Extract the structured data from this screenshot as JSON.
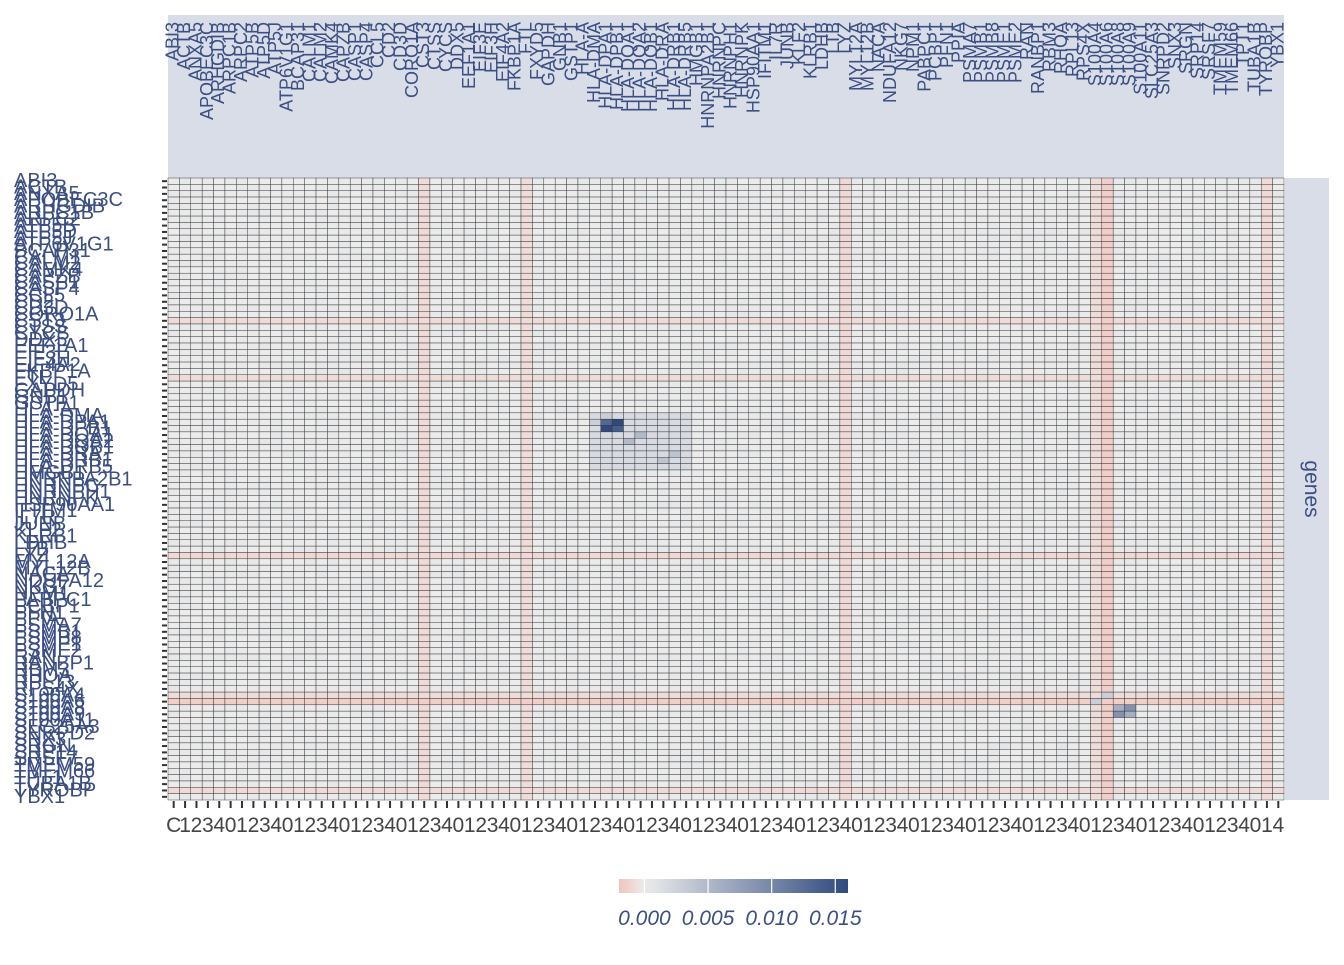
{
  "chart_data": {
    "type": "heatmap",
    "title": "",
    "facet_label": "genes",
    "genes": [
      "ABI3",
      "ACTB",
      "ANXA5",
      "APOBEC3C",
      "ARHGDIB",
      "ARPC1B",
      "ARPC2",
      "ATP5B",
      "ATP5D",
      "ATP5J",
      "ATP6V1G1",
      "BCAP31",
      "CALM1",
      "CALM2",
      "CAMK4",
      "CAPZB",
      "CASP1",
      "CASP4",
      "CCL5",
      "CD2",
      "CD3D",
      "CORO1A",
      "CST3",
      "CTSS",
      "CYCS",
      "DDX5",
      "EEF1A1",
      "EIF3E",
      "EIF3H",
      "EIF4A2",
      "FKBP1A",
      "FTL",
      "FXYD5",
      "GAPDH",
      "GNB1",
      "GSTP1",
      "HLA-A",
      "HLA-DMA",
      "HLA-DPA1",
      "HLA-DPB1",
      "HLA-DQA1",
      "HLA-DQA2",
      "HLA-DQB1",
      "HLA-DRA",
      "HLA-DRB1",
      "HLA-DRB5",
      "HMGB1",
      "HNRNPA2B1",
      "HNRNPC",
      "HNRNPH1",
      "HNRNPK",
      "HSP90AA1",
      "IFITM1",
      "IL7R",
      "JUNB",
      "KLF2",
      "KLRB1",
      "LDHB",
      "LTB",
      "LYZ",
      "MYL12A",
      "MYL12B",
      "NACA",
      "NDUFA12",
      "NKG7",
      "NPM1",
      "PABPC1",
      "PCBP1",
      "PFN1",
      "PPIA",
      "PSMA7",
      "PSMB1",
      "PSMB8",
      "PSME1",
      "PSME2",
      "RAN",
      "RANBP1",
      "RBM3",
      "RHOA",
      "RPL13",
      "RPS4X",
      "S100A4",
      "S100A6",
      "S100A8",
      "S100A9",
      "S100A11",
      "SLC25A3",
      "SNRPD2",
      "SNX3",
      "SRGN",
      "SRP14",
      "SRSF7",
      "TMEM59",
      "TMEM66",
      "TPT1",
      "TUBA1B",
      "TYROBP",
      "YBX1"
    ],
    "y_tick_labels": [
      "ABI3",
      "ACTB",
      "ANXA5",
      "APOBEC3C",
      "ARHGDIB",
      "ARPC1B",
      "ARPC2",
      "ATP5B",
      "ATP5D",
      "ATP5J",
      "ATP6V1G1",
      "BCAP31",
      "CALM1",
      "CALM2",
      "CAMK4",
      "CAPZB",
      "CASP1",
      "CASP4",
      "CCL5",
      "CD2",
      "CD3D",
      "CORO1A",
      "CST3",
      "CTSS",
      "CYCS",
      "DDX5",
      "EEF1A1",
      "EIF3E",
      "EIF3H",
      "EIF4A2",
      "FKBP1A",
      "FTL",
      "FXYD5",
      "GAPDH",
      "GNB1",
      "GSTP1",
      "HLA-A",
      "HLA-DMA",
      "HLA-DPA1",
      "HLA-DPB1",
      "HLA-DQA1",
      "HLA-DQA2",
      "HLA-DQB1",
      "HLA-DRA",
      "HLA-DRB1",
      "HLA-DRB5",
      "HMGB1",
      "HNRNPA2B1",
      "HNRNPC",
      "HNRNPH1",
      "HNRNPK",
      "HSP90AA1",
      "IFITM1",
      "IL7R",
      "JUNB",
      "KLF2",
      "KLRB1",
      "LDHB",
      "LTB",
      "LYZ",
      "MYL12A",
      "MYL12B",
      "NACA",
      "NDUFA12",
      "NKG7",
      "NPM1",
      "PABPC1",
      "PCBP1",
      "PFN1",
      "PPIA",
      "PSMA7",
      "PSMB1",
      "PSMB8",
      "PSME1",
      "PSME2",
      "RAN",
      "RANBP1",
      "RBM3",
      "RHOA",
      "RPL13",
      "RPS4X",
      "S100A4",
      "S100A6",
      "S100A8",
      "S100A9",
      "S100A11",
      "SLC25A3",
      "SNRPD2",
      "SNX3",
      "SRGN",
      "SRP14",
      "SRSF7",
      "TMEM59",
      "TMEM66",
      "TPT1",
      "TUBA1B",
      "TYROBP",
      "YBX1"
    ],
    "x_tick_labels_visible": [
      "C",
      "0",
      "1",
      "2",
      "3",
      "4"
    ],
    "x_tick_label_last": "4",
    "colorbar": {
      "ticks": [
        0.0,
        0.005,
        0.01,
        0.015
      ],
      "tick_labels": [
        "0.000",
        "0.005",
        "0.010",
        "0.015"
      ],
      "range": [
        -0.002,
        0.016
      ],
      "colors": {
        "low": "#f2c4bd",
        "mid": "#ececec",
        "high": "#2f4a7e"
      }
    },
    "background_value": 0.0002,
    "hot_cells": [
      [
        "HLA-DPA1",
        "HLA-DPB1",
        0.016
      ],
      [
        "HLA-DPB1",
        "HLA-DPA1",
        0.016
      ],
      [
        "HLA-DPA1",
        "HLA-DPA1",
        0.013
      ],
      [
        "HLA-DPB1",
        "HLA-DPB1",
        0.014
      ],
      [
        "HLA-DQA1",
        "HLA-DQA2",
        0.005
      ],
      [
        "HLA-DQA2",
        "HLA-DQA1",
        0.005
      ],
      [
        "HLA-DRA",
        "HLA-DRB1",
        0.004
      ],
      [
        "HLA-DRB1",
        "HLA-DRA",
        0.004
      ],
      [
        "HLA-DMA",
        "HLA-DPA1",
        0.003
      ],
      [
        "HLA-DPA1",
        "HLA-DMA",
        0.003
      ],
      [
        "S100A8",
        "S100A9",
        0.009
      ],
      [
        "S100A9",
        "S100A8",
        0.009
      ],
      [
        "S100A8",
        "S100A8",
        0.006
      ],
      [
        "S100A9",
        "S100A9",
        0.006
      ],
      [
        "S100A4",
        "S100A6",
        0.003
      ],
      [
        "S100A6",
        "S100A4",
        0.003
      ]
    ],
    "hot_block": {
      "genes": [
        "HLA-DMA",
        "HLA-DPA1",
        "HLA-DPB1",
        "HLA-DQA1",
        "HLA-DQA2",
        "HLA-DQB1",
        "HLA-DRA",
        "HLA-DRB1",
        "HLA-DRB5"
      ],
      "value": 0.0018
    },
    "cold_genes": [
      {
        "gene": "S100A6",
        "value": -0.0015
      },
      {
        "gene": "S100A4",
        "value": -0.0008
      },
      {
        "gene": "FTL",
        "value": -0.0008
      },
      {
        "gene": "LYZ",
        "value": -0.001
      },
      {
        "gene": "TYROBP",
        "value": -0.0009
      },
      {
        "gene": "CST3",
        "value": -0.0009
      }
    ],
    "grid": true,
    "legend_position": "bottom"
  },
  "colors": {
    "strip_background": "#d9dde8",
    "label_color": "#3b4f82",
    "x_label_color": "#444444",
    "cell_border": "#333333"
  }
}
